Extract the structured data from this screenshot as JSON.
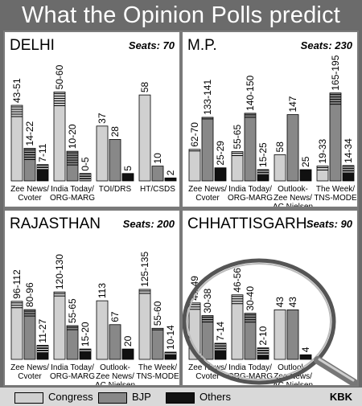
{
  "title": "What the Opinion Polls predict",
  "legend": {
    "items": [
      {
        "label": "Congress",
        "color": "#d0d0d0"
      },
      {
        "label": "BJP",
        "color": "#888888"
      },
      {
        "label": "Others",
        "color": "#111111"
      }
    ]
  },
  "credit": "KBK",
  "chart_data": [
    {
      "type": "bar",
      "state": "DELHI",
      "seats": "Seats: 70",
      "ylim": [
        0,
        70
      ],
      "groups": [
        {
          "label": [
            "Zee News/",
            "Cvoter"
          ],
          "bars": [
            {
              "series": "Congress",
              "label": "43-51",
              "low": 43,
              "high": 51
            },
            {
              "series": "BJP",
              "label": "14-22",
              "low": 14,
              "high": 22
            },
            {
              "series": "Others",
              "label": "7-11",
              "low": 7,
              "high": 11
            }
          ]
        },
        {
          "label": [
            "India Today/",
            "ORG-MARG"
          ],
          "bars": [
            {
              "series": "Congress",
              "label": "50-60",
              "low": 50,
              "high": 60
            },
            {
              "series": "BJP",
              "label": "10-20",
              "low": 10,
              "high": 20
            },
            {
              "series": "Others",
              "label": "0-5",
              "low": 0,
              "high": 5
            }
          ]
        },
        {
          "label": [
            "TOI/DRS"
          ],
          "bars": [
            {
              "series": "Congress",
              "label": "37",
              "low": 37,
              "high": 37
            },
            {
              "series": "BJP",
              "label": "28",
              "low": 28,
              "high": 28
            },
            {
              "series": "Others",
              "label": "5",
              "low": 5,
              "high": 5
            }
          ]
        },
        {
          "label": [
            "HT/CSDS"
          ],
          "bars": [
            {
              "series": "Congress",
              "label": "58",
              "low": 58,
              "high": 58
            },
            {
              "series": "BJP",
              "label": "10",
              "low": 10,
              "high": 10
            },
            {
              "series": "Others",
              "label": "2",
              "low": 2,
              "high": 2
            }
          ]
        }
      ]
    },
    {
      "type": "bar",
      "state": "M.P.",
      "seats": "Seats: 230",
      "ylim": [
        0,
        230
      ],
      "groups": [
        {
          "label": [
            "Zee News/",
            "Cvoter"
          ],
          "bars": [
            {
              "series": "Congress",
              "label": "62-70",
              "low": 62,
              "high": 70
            },
            {
              "series": "BJP",
              "label": "133-141",
              "low": 133,
              "high": 141
            },
            {
              "series": "Others",
              "label": "25-29",
              "low": 25,
              "high": 29
            }
          ]
        },
        {
          "label": [
            "India Today/",
            "ORG-MARG"
          ],
          "bars": [
            {
              "series": "Congress",
              "label": "55-65",
              "low": 55,
              "high": 65
            },
            {
              "series": "BJP",
              "label": "140-150",
              "low": 140,
              "high": 150
            },
            {
              "series": "Others",
              "label": "15-25",
              "low": 15,
              "high": 25
            }
          ]
        },
        {
          "label": [
            "Outlook-",
            "Zee News/",
            "AC Nielsen"
          ],
          "bars": [
            {
              "series": "Congress",
              "label": "58",
              "low": 58,
              "high": 58
            },
            {
              "series": "BJP",
              "label": "147",
              "low": 147,
              "high": 147
            },
            {
              "series": "Others",
              "label": "25",
              "low": 25,
              "high": 25
            }
          ]
        },
        {
          "label": [
            "The Week/",
            "TNS-MODE"
          ],
          "bars": [
            {
              "series": "Congress",
              "label": "19-33",
              "low": 19,
              "high": 33
            },
            {
              "series": "BJP",
              "label": "165-195",
              "low": 165,
              "high": 195
            },
            {
              "series": "Others",
              "label": "14-34",
              "low": 14,
              "high": 34
            }
          ]
        }
      ]
    },
    {
      "type": "bar",
      "state": "RAJASTHAN",
      "seats": "Seats: 200",
      "ylim": [
        0,
        200
      ],
      "groups": [
        {
          "label": [
            "Zee News/",
            "Cvoter"
          ],
          "bars": [
            {
              "series": "Congress",
              "label": "96-112",
              "low": 96,
              "high": 112
            },
            {
              "series": "BJP",
              "label": "80-96",
              "low": 80,
              "high": 96
            },
            {
              "series": "Others",
              "label": "11-27",
              "low": 11,
              "high": 27
            }
          ]
        },
        {
          "label": [
            "India Today/",
            "ORG-MARG"
          ],
          "bars": [
            {
              "series": "Congress",
              "label": "120-130",
              "low": 120,
              "high": 130
            },
            {
              "series": "BJP",
              "label": "55-65",
              "low": 55,
              "high": 65
            },
            {
              "series": "Others",
              "label": "15-20",
              "low": 15,
              "high": 20
            }
          ]
        },
        {
          "label": [
            "Outlook-",
            "Zee News/",
            "AC Nielsen"
          ],
          "bars": [
            {
              "series": "Congress",
              "label": "113",
              "low": 113,
              "high": 113
            },
            {
              "series": "BJP",
              "label": "67",
              "low": 67,
              "high": 67
            },
            {
              "series": "Others",
              "label": "20",
              "low": 20,
              "high": 20
            }
          ]
        },
        {
          "label": [
            "The Week/",
            "TNS-MODE"
          ],
          "bars": [
            {
              "series": "Congress",
              "label": "125-135",
              "low": 125,
              "high": 135
            },
            {
              "series": "BJP",
              "label": "55-60",
              "low": 55,
              "high": 60
            },
            {
              "series": "Others",
              "label": "10-14",
              "low": 10,
              "high": 14
            }
          ]
        }
      ]
    },
    {
      "type": "bar",
      "state": "CHHATTISGARH",
      "seats": "Seats: 90",
      "ylim": [
        0,
        90
      ],
      "groups": [
        {
          "label": [
            "Zee News/",
            "Cvoter"
          ],
          "bars": [
            {
              "series": "Congress",
              "label": "41-49",
              "low": 41,
              "high": 49
            },
            {
              "series": "BJP",
              "label": "30-38",
              "low": 30,
              "high": 38
            },
            {
              "series": "Others",
              "label": "7-14",
              "low": 7,
              "high": 14
            }
          ]
        },
        {
          "label": [
            "India Today/",
            "ORG-MARG"
          ],
          "bars": [
            {
              "series": "Congress",
              "label": "46-56",
              "low": 46,
              "high": 56
            },
            {
              "series": "BJP",
              "label": "30-40",
              "low": 30,
              "high": 40
            },
            {
              "series": "Others",
              "label": "2-10",
              "low": 2,
              "high": 10
            }
          ]
        },
        {
          "label": [
            "Outlook-",
            "Zee News/",
            "AC Nielsen"
          ],
          "bars": [
            {
              "series": "Congress",
              "label": "43",
              "low": 43,
              "high": 43
            },
            {
              "series": "BJP",
              "label": "43",
              "low": 43,
              "high": 43
            },
            {
              "series": "Others",
              "label": "4",
              "low": 4,
              "high": 4
            }
          ]
        }
      ]
    }
  ]
}
